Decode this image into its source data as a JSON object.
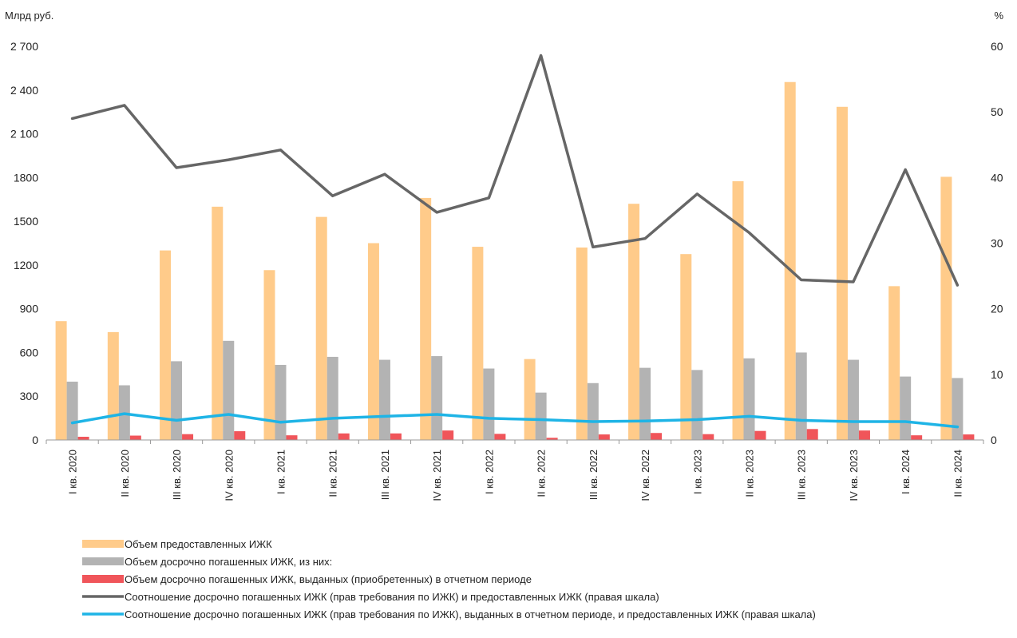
{
  "chart_data": {
    "type": "bar",
    "left_axis_unit": "Млрд руб.",
    "right_axis_unit": "%",
    "left_ylim": [
      0,
      2700
    ],
    "left_ticks": [
      "0",
      "300",
      "600",
      "900",
      "1200",
      "1500",
      "1800",
      "2 100",
      "2 400",
      "2 700"
    ],
    "left_tick_values": [
      0,
      300,
      600,
      900,
      1200,
      1500,
      1800,
      2100,
      2400,
      2700
    ],
    "right_ylim": [
      0,
      60
    ],
    "right_ticks": [
      "0",
      "10",
      "20",
      "30",
      "40",
      "50",
      "60"
    ],
    "right_tick_values": [
      0,
      10,
      20,
      30,
      40,
      50,
      60
    ],
    "grid": false,
    "legend_position": "bottom",
    "categories": [
      "I кв. 2020",
      "II кв. 2020",
      "III кв. 2020",
      "IV кв. 2020",
      "I кв. 2021",
      "II кв. 2021",
      "III кв. 2021",
      "IV кв. 2021",
      "I кв. 2022",
      "II кв. 2022",
      "III кв. 2022",
      "IV кв. 2022",
      "I кв. 2023",
      "II кв. 2023",
      "III кв. 2023",
      "IV кв. 2023",
      "I кв. 2024",
      "II кв. 2024"
    ],
    "bar_series": [
      {
        "name": "Объем предоставленных ИЖК",
        "color": "#FFCB8A",
        "axis": "left",
        "values": [
          815,
          740,
          1300,
          1600,
          1165,
          1530,
          1350,
          1660,
          1325,
          555,
          1320,
          1620,
          1275,
          1775,
          2455,
          2285,
          1055,
          1805
        ]
      },
      {
        "name": "Объем досрочно погашенных ИЖК, из них:",
        "color": "#B3B3B3",
        "axis": "left",
        "values": [
          400,
          375,
          540,
          680,
          515,
          570,
          550,
          575,
          490,
          325,
          390,
          495,
          480,
          560,
          600,
          550,
          435,
          425
        ]
      },
      {
        "name": "Объем досрочно погашенных ИЖК, выданных (приобретенных) в отчетном периоде",
        "color": "#F0555A",
        "axis": "left",
        "values": [
          22,
          30,
          40,
          60,
          32,
          45,
          45,
          65,
          42,
          15,
          38,
          48,
          40,
          62,
          75,
          65,
          32,
          38
        ]
      }
    ],
    "line_series": [
      {
        "name": "Соотношение досрочно погашенных ИЖК (прав требования по ИЖК) и предоставленных ИЖК (правая шкала)",
        "color": "#666666",
        "axis": "right",
        "values": [
          49,
          51,
          41.5,
          42.7,
          44.2,
          37.2,
          40.5,
          34.7,
          36.9,
          58.6,
          29.4,
          30.7,
          37.5,
          31.6,
          24.4,
          24.1,
          41.2,
          23.6
        ]
      },
      {
        "name": "Соотношение досрочно погашенных ИЖК (прав требования по ИЖК), выданных в отчетном периоде, и предоставленных ИЖК (правая шкала)",
        "color": "#1EB4E6",
        "axis": "right",
        "values": [
          2.6,
          4.0,
          3.0,
          3.9,
          2.7,
          3.3,
          3.6,
          3.9,
          3.3,
          3.1,
          2.8,
          2.9,
          3.1,
          3.6,
          3.0,
          2.8,
          2.8,
          2.0
        ]
      }
    ]
  }
}
